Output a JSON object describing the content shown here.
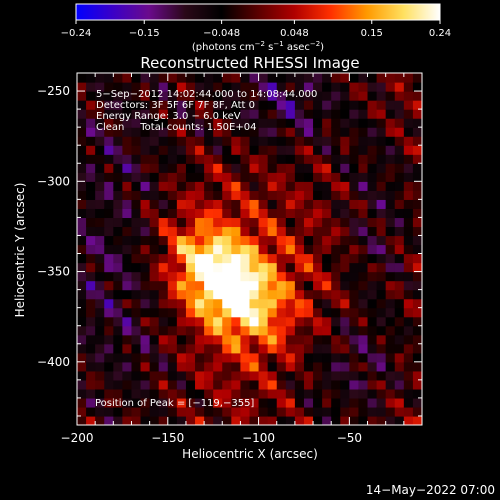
{
  "chart_data": {
    "type": "heatmap",
    "title": "Reconstructed RHESSI Image",
    "xlabel": "Heliocentric X (arcsec)",
    "ylabel": "Heliocentric Y (arcsec)",
    "xlim": [
      -200,
      -10
    ],
    "ylim": [
      -435,
      -240
    ],
    "x_ticks": [
      -200,
      -150,
      -100,
      -50
    ],
    "x_tick_labels": [
      "−200",
      "−150",
      "−100",
      "−50"
    ],
    "y_ticks": [
      -250,
      -300,
      -350,
      -400
    ],
    "y_tick_labels": [
      "−250",
      "−300",
      "−350",
      "−400"
    ],
    "colorbar": {
      "range": [
        -0.24,
        0.24
      ],
      "ticks": [
        -0.24,
        -0.15,
        -0.048,
        0.048,
        0.15,
        0.24
      ],
      "tick_labels": [
        "−0.24",
        "−0.15",
        "−0.048",
        "0.048",
        "0.15",
        "0.24"
      ],
      "label_prefix": "(photons cm",
      "label_exp1": "−2",
      "label_mid1": " s",
      "label_exp2": "−1",
      "label_mid2": " asec",
      "label_exp3": "−2",
      "label_suffix": ")",
      "colormap": [
        "#0000ff",
        "#3a00c8",
        "#6a0a8c",
        "#2a0818",
        "#000000",
        "#5a0000",
        "#b00000",
        "#ff3000",
        "#ff9a00",
        "#ffe060",
        "#ffffff"
      ]
    },
    "annotations": [
      "5−Sep−2012 14:02:44.000 to 14:08:44.000",
      "Detectors: 3F 5F 6F 7F 8F, Att 0",
      "Energy Range: 3.0 − 6.0 keV",
      "Clean     Total counts: 1.50E+04"
    ],
    "peak_label": "Position of Peak = [−119,−355]",
    "peak": {
      "x": -119,
      "y": -355
    }
  },
  "footer": {
    "timestamp": "14−May−2022 07:00"
  }
}
